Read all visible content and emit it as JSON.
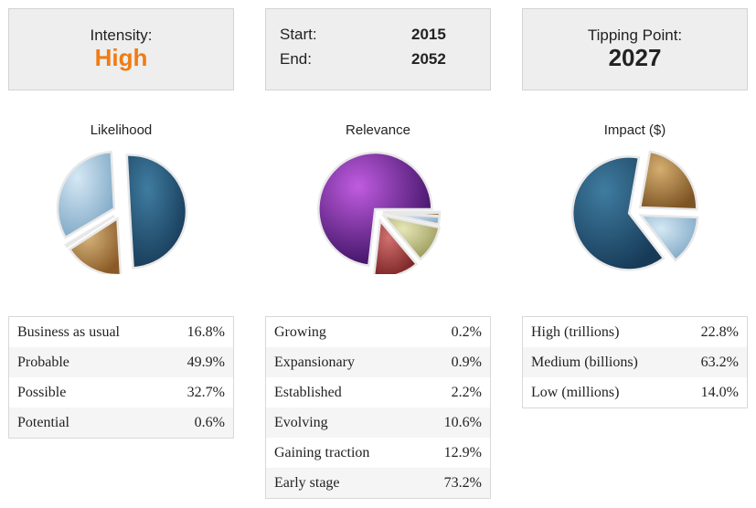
{
  "intensity": {
    "label": "Intensity:",
    "value": "High",
    "color": "#f07c12"
  },
  "timeframe": {
    "start_label": "Start:",
    "start_value": "2015",
    "end_label": "End:",
    "end_value": "2052"
  },
  "tipping_point": {
    "label": "Tipping Point:",
    "value": "2027"
  },
  "chart_data": [
    {
      "type": "pie",
      "title": "Likelihood",
      "categories": [
        "Business as usual",
        "Probable",
        "Possible",
        "Potential"
      ],
      "values": [
        "16.8%",
        "49.9%",
        "32.7%",
        "0.6%"
      ]
    },
    {
      "type": "pie",
      "title": "Relevance",
      "categories": [
        "Growing",
        "Expansionary",
        "Established",
        "Evolving",
        "Gaining traction",
        "Early stage"
      ],
      "values": [
        "0.2%",
        "0.9%",
        "2.2%",
        "10.6%",
        "12.9%",
        "73.2%"
      ]
    },
    {
      "type": "pie",
      "title": "Impact ($)",
      "categories": [
        "High (trillions)",
        "Medium (billions)",
        "Low (millions)"
      ],
      "values": [
        "22.8%",
        "63.2%",
        "14.0%"
      ]
    }
  ]
}
